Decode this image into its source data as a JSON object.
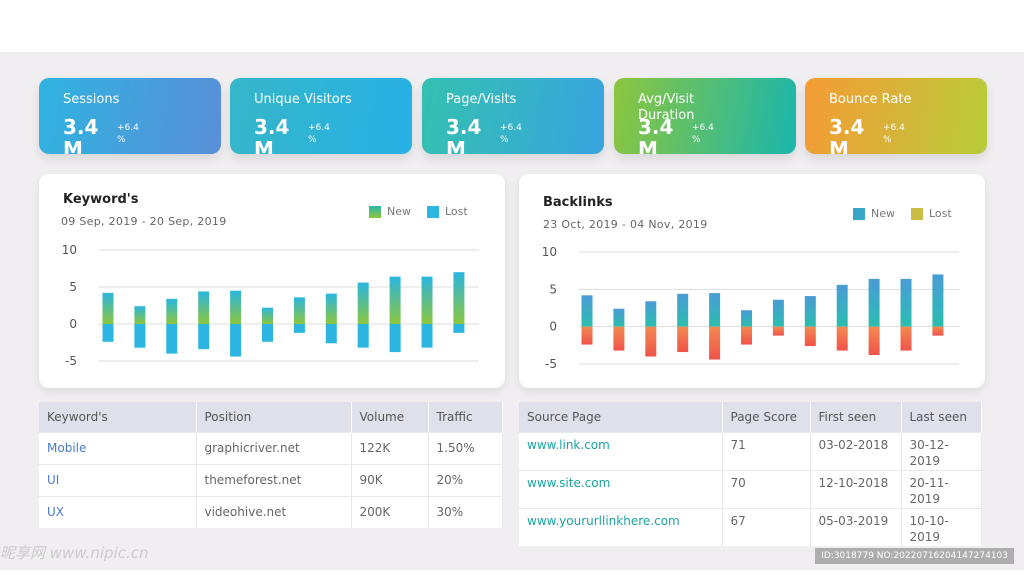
{
  "stats": [
    {
      "title": "Sessions",
      "value": "3.4 M",
      "change": "+6.4 %",
      "grad": [
        "#2fb3e0",
        "#5a8fd8"
      ]
    },
    {
      "title": "Unique Visitors",
      "value": "3.4 M",
      "change": "+6.4 %",
      "grad": [
        "#36b6c8",
        "#27b0e6"
      ]
    },
    {
      "title": "Page/Visits",
      "value": "3.4 M",
      "change": "+6.4 %",
      "grad": [
        "#34c0b0",
        "#39a4e0"
      ]
    },
    {
      "title": "Avg/Visit Duration",
      "value": "3.4 M",
      "change": "+6.4 %",
      "grad": [
        "#8cc63e",
        "#1ab6ad"
      ]
    },
    {
      "title": "Bounce Rate",
      "value": "3.4 M",
      "change": "+6.4 %",
      "grad": [
        "#f59b35",
        "#b8cc3b"
      ]
    }
  ],
  "keywords_chart": {
    "title": "Keyword's",
    "date_range": "09 Sep, 2019 - 20 Sep, 2019",
    "legend": [
      "New",
      "Lost"
    ],
    "colors": {
      "new_top": "#2bb5e0",
      "new_bottom": "#8cc63e",
      "lost": "#2bb5e0"
    }
  },
  "backlinks_chart": {
    "title": "Backlinks",
    "date_range": "23 Oct, 2019 - 04 Nov, 2019",
    "legend": [
      "New",
      "Lost"
    ],
    "colors": {
      "new_top": "#4a9cd6",
      "new_bottom": "#2bbdb0",
      "lost_top": "#f28a50",
      "lost_bottom": "#f0534a"
    }
  },
  "chart_data": [
    {
      "type": "bar",
      "title": "Keyword's",
      "yticks": [
        10,
        5,
        0,
        -5
      ],
      "ylim": [
        -5,
        10
      ],
      "grid": true,
      "legend_position": "top-right",
      "series": [
        {
          "name": "New",
          "values": [
            4.2,
            2.4,
            3.4,
            4.4,
            4.5,
            2.2,
            3.6,
            4.1,
            5.6,
            6.4,
            6.4,
            7.0
          ]
        },
        {
          "name": "Lost",
          "values": [
            -2.4,
            -3.2,
            -4.0,
            -3.4,
            -4.4,
            -2.4,
            -1.2,
            -2.6,
            -3.2,
            -3.8,
            -3.2,
            -1.2
          ]
        }
      ]
    },
    {
      "type": "bar",
      "title": "Backlinks",
      "yticks": [
        10,
        5,
        0,
        -5
      ],
      "ylim": [
        -5,
        10
      ],
      "grid": true,
      "legend_position": "top-right",
      "series": [
        {
          "name": "New",
          "values": [
            4.2,
            2.4,
            3.4,
            4.4,
            4.5,
            2.2,
            3.6,
            4.1,
            5.6,
            6.4,
            6.4,
            7.0
          ]
        },
        {
          "name": "Lost",
          "values": [
            -2.4,
            -3.2,
            -4.0,
            -3.4,
            -4.4,
            -2.4,
            -1.2,
            -2.6,
            -3.2,
            -3.8,
            -3.2,
            -1.2
          ]
        }
      ]
    }
  ],
  "keywords_table": {
    "headers": [
      "Keyword's",
      "Position",
      "Volume",
      "Traffic"
    ],
    "rows": [
      [
        "Mobile",
        "graphicriver.net",
        "122K",
        "1.50%"
      ],
      [
        "UI",
        "themeforest.net",
        "90K",
        "20%"
      ],
      [
        "UX",
        "videohive.net",
        "200K",
        "30%"
      ]
    ]
  },
  "sources_table": {
    "headers": [
      "Source Page",
      "Page Score",
      "First seen",
      "Last seen"
    ],
    "rows": [
      [
        "www.link.com",
        "71",
        "03-02-2018",
        "30-12-2019"
      ],
      [
        "www.site.com",
        "70",
        "12-10-2018",
        "20-11-2019"
      ],
      [
        "www.yoururllinkhere.com",
        "67",
        "05-03-2019",
        "10-10-2019"
      ]
    ]
  },
  "watermark": "昵享网 www.nipic.cn",
  "image_id": "ID:3018779 NO:20220716204147274103"
}
